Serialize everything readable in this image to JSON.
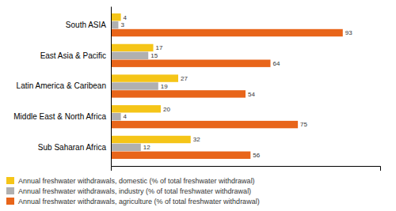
{
  "chart_data": {
    "type": "bar",
    "orientation": "horizontal",
    "categories": [
      "South ASIA",
      "East Asia & Pacific",
      "Latin America & Caribean",
      "Middle East & North Africa",
      "Sub Saharan Africa"
    ],
    "series": [
      {
        "name": "Annual freshwater withdrawals, domestic (% of total freshwater withdrawal)",
        "color": "#F5C518",
        "values": [
          4,
          17,
          27,
          20,
          32
        ]
      },
      {
        "name": "Annual freshwater withdrawals, industry (% of total freshwater withdrawal)",
        "color": "#B0B0B0",
        "values": [
          3,
          15,
          19,
          4,
          12
        ]
      },
      {
        "name": "Annual freshwater withdrawals, agriculture (% of total freshwater withdrawal)",
        "color": "#E8651A",
        "values": [
          93,
          64,
          54,
          75,
          56
        ]
      }
    ],
    "xlim": [
      0,
      108
    ],
    "xticks": [],
    "tick_labels": "y",
    "data_labels": true,
    "legend": "lower left"
  }
}
